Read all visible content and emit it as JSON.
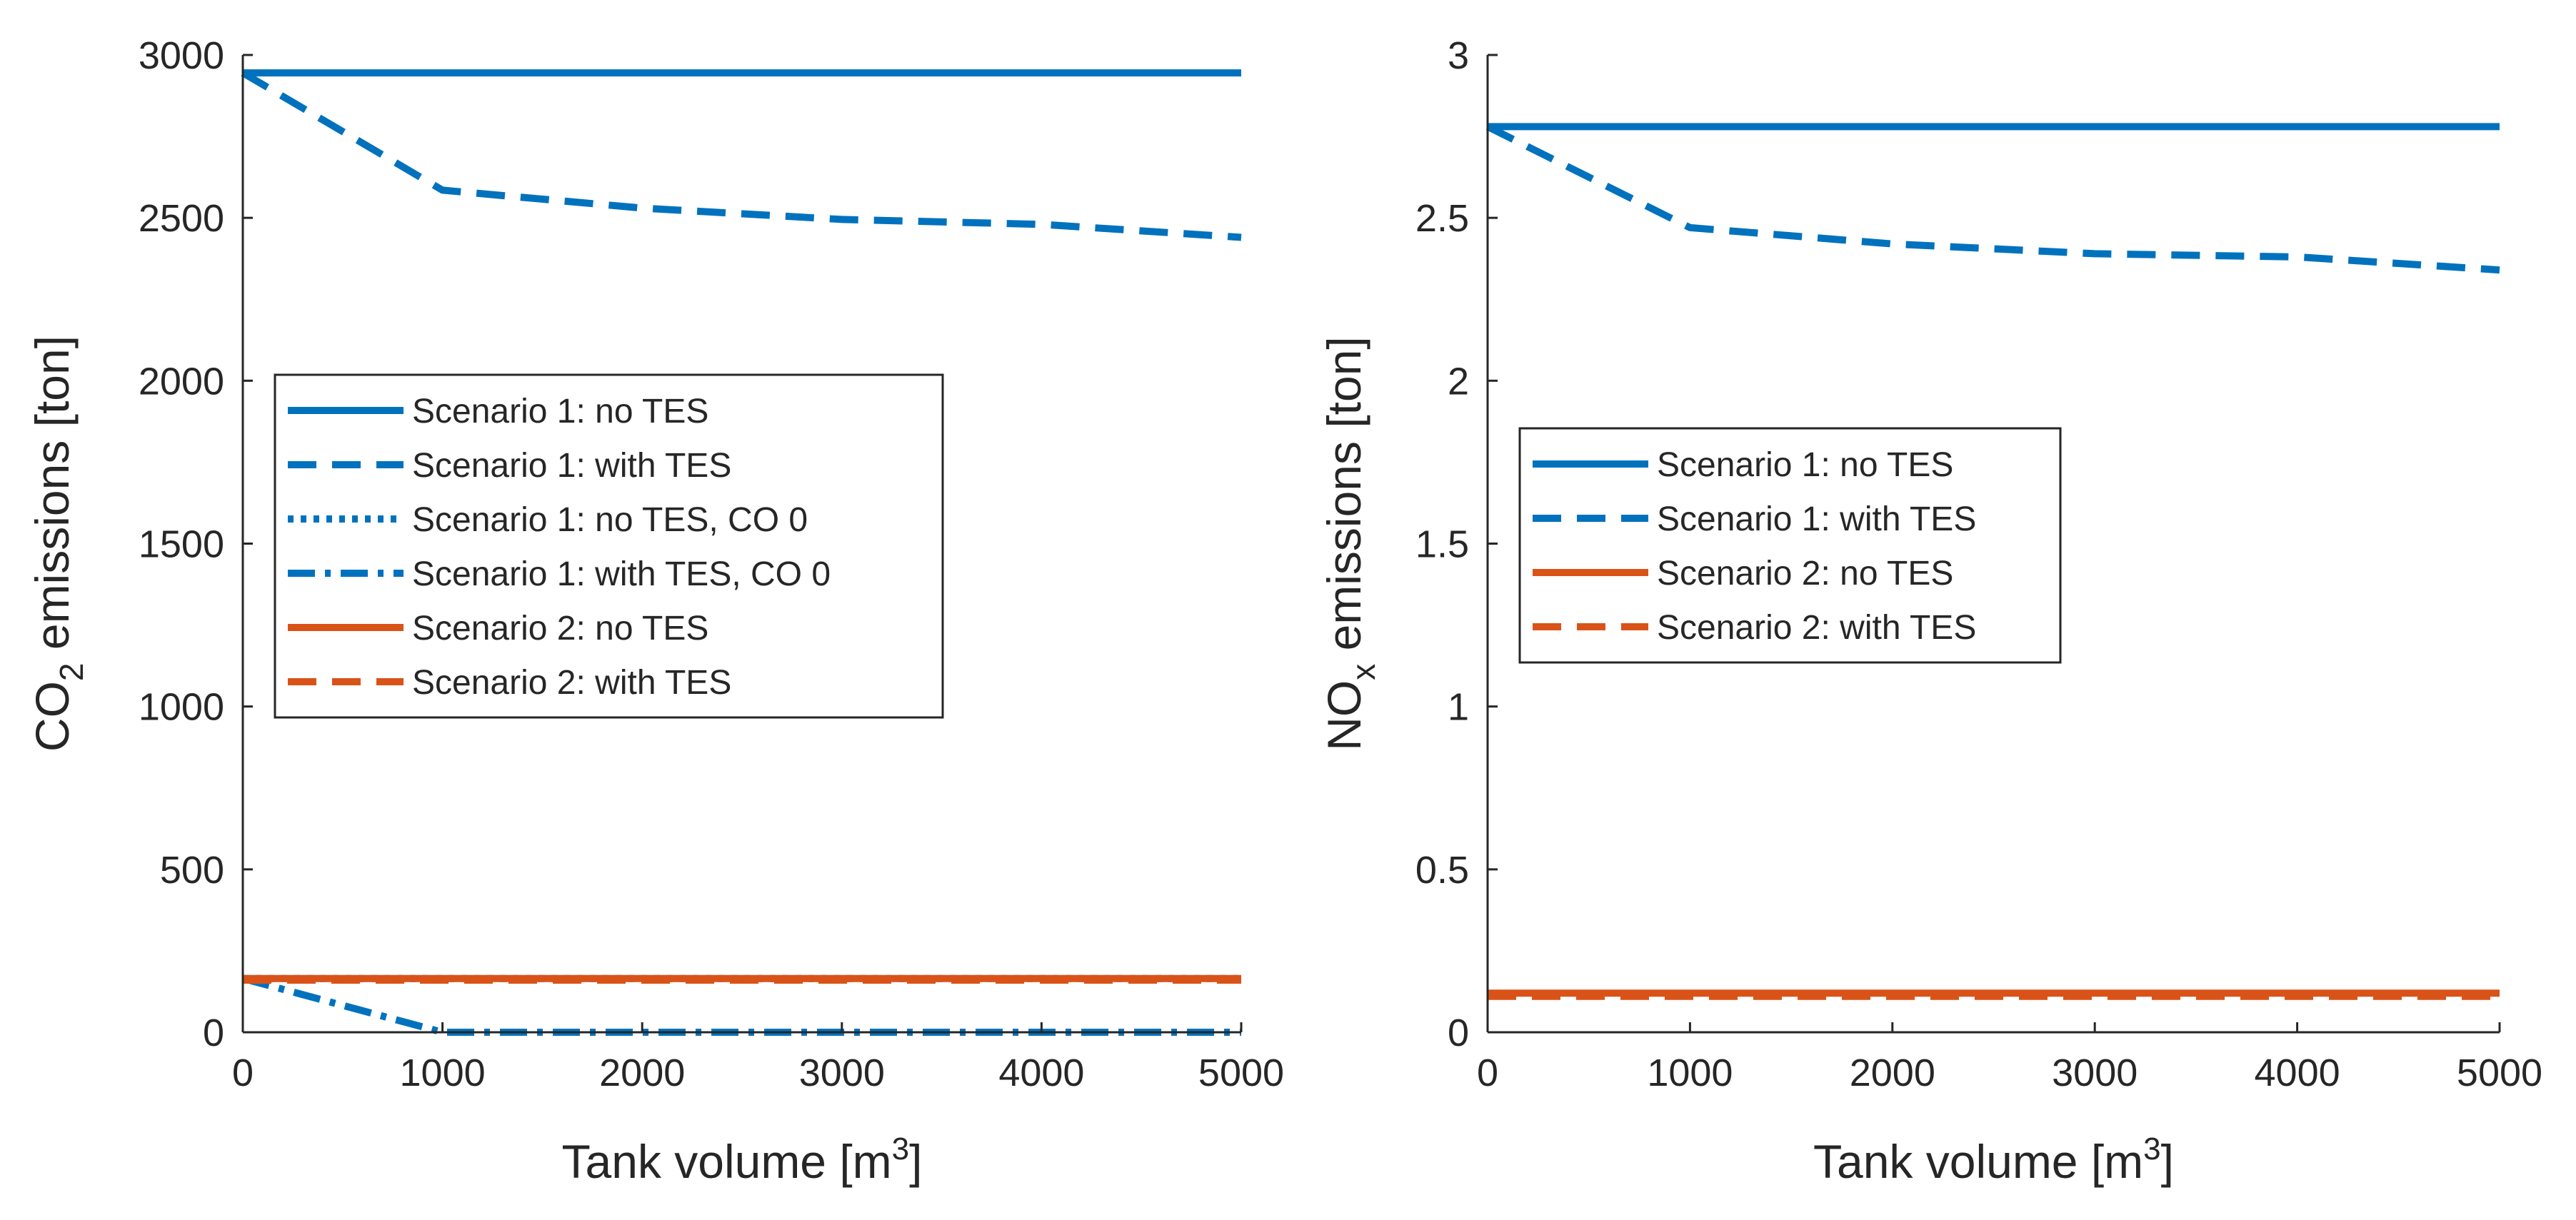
{
  "chart_data": [
    {
      "type": "line",
      "title": "",
      "xlabel": "Tank volume [m",
      "xlabel_sup": "3",
      "xlabel_suffix": "]",
      "ylabel": "CO",
      "ylabel_sub": "2",
      "ylabel_suffix": " emissions [ton]",
      "xlim": [
        0,
        5000
      ],
      "ylim": [
        0,
        3000
      ],
      "x_ticks": [
        0,
        1000,
        2000,
        3000,
        4000,
        5000
      ],
      "y_ticks": [
        0,
        500,
        1000,
        1500,
        2000,
        2500,
        3000
      ],
      "legend_position": "middle-left",
      "series": [
        {
          "name": "Scenario 1: no TES",
          "color": "#0072BD",
          "style": "solid",
          "x": [
            0,
            1000,
            2000,
            3000,
            4000,
            5000
          ],
          "y": [
            2945,
            2945,
            2945,
            2945,
            2945,
            2945
          ]
        },
        {
          "name": "Scenario 1: with TES",
          "color": "#0072BD",
          "style": "dashed",
          "x": [
            0,
            1000,
            2000,
            3000,
            4000,
            5000
          ],
          "y": [
            2945,
            2585,
            2530,
            2495,
            2480,
            2440
          ]
        },
        {
          "name": "Scenario 1: no TES, CO 0",
          "color": "#0072BD",
          "style": "dotted",
          "x": [
            0,
            1000,
            2000,
            3000,
            4000,
            5000
          ],
          "y": [
            165,
            165,
            165,
            165,
            165,
            165
          ]
        },
        {
          "name": "Scenario 1: with TES, CO 0",
          "color": "#0072BD",
          "style": "dashdot",
          "x": [
            0,
            1000,
            2000,
            3000,
            4000,
            5000
          ],
          "y": [
            165,
            0,
            0,
            0,
            0,
            0
          ]
        },
        {
          "name": "Scenario 2: no TES",
          "color": "#D95319",
          "style": "solid",
          "x": [
            0,
            1000,
            2000,
            3000,
            4000,
            5000
          ],
          "y": [
            165,
            165,
            165,
            165,
            165,
            165
          ]
        },
        {
          "name": "Scenario 2: with TES",
          "color": "#D95319",
          "style": "dashed",
          "x": [
            0,
            1000,
            2000,
            3000,
            4000,
            5000
          ],
          "y": [
            160,
            160,
            160,
            160,
            160,
            160
          ]
        }
      ]
    },
    {
      "type": "line",
      "title": "",
      "xlabel": "Tank volume [m",
      "xlabel_sup": "3",
      "xlabel_suffix": "]",
      "ylabel": "NO",
      "ylabel_sub": "x",
      "ylabel_suffix": " emissions [ton]",
      "xlim": [
        0,
        5000
      ],
      "ylim": [
        0,
        3
      ],
      "x_ticks": [
        0,
        1000,
        2000,
        3000,
        4000,
        5000
      ],
      "y_ticks": [
        0,
        0.5,
        1,
        1.5,
        2,
        2.5,
        3
      ],
      "legend_position": "middle-left",
      "series": [
        {
          "name": "Scenario 1: no TES",
          "color": "#0072BD",
          "style": "solid",
          "x": [
            0,
            1000,
            2000,
            3000,
            4000,
            5000
          ],
          "y": [
            2.78,
            2.78,
            2.78,
            2.78,
            2.78,
            2.78
          ]
        },
        {
          "name": "Scenario 1: with TES",
          "color": "#0072BD",
          "style": "dashed",
          "x": [
            0,
            1000,
            2000,
            3000,
            4000,
            5000
          ],
          "y": [
            2.78,
            2.47,
            2.42,
            2.39,
            2.38,
            2.34
          ]
        },
        {
          "name": "Scenario 2: no TES",
          "color": "#D95319",
          "style": "solid",
          "x": [
            0,
            1000,
            2000,
            3000,
            4000,
            5000
          ],
          "y": [
            0.12,
            0.12,
            0.12,
            0.12,
            0.12,
            0.12
          ]
        },
        {
          "name": "Scenario 2: with TES",
          "color": "#D95319",
          "style": "dashed",
          "x": [
            0,
            1000,
            2000,
            3000,
            4000,
            5000
          ],
          "y": [
            0.11,
            0.11,
            0.11,
            0.11,
            0.11,
            0.11
          ]
        }
      ]
    }
  ]
}
